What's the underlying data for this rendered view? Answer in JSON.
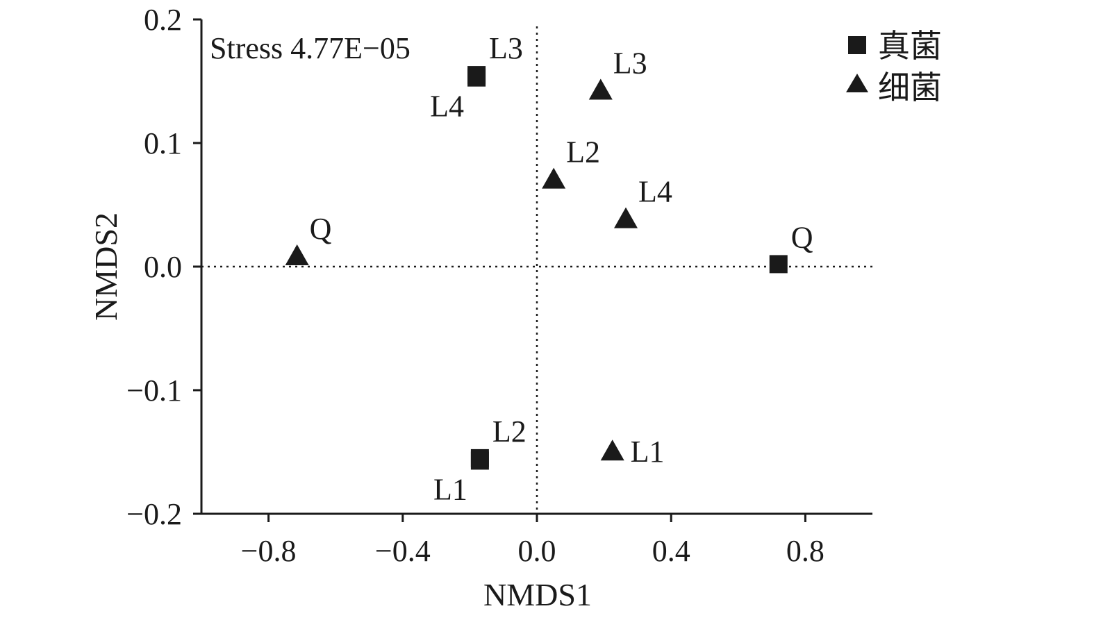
{
  "chart_data": {
    "type": "scatter",
    "xlabel": "NMDS1",
    "ylabel": "NMDS2",
    "xlim": [
      -1.0,
      1.0
    ],
    "ylim": [
      -0.2,
      0.2
    ],
    "xticks": [
      "−0.8",
      "−0.4",
      "0.0",
      "0.4",
      "0.8"
    ],
    "xtick_values": [
      -0.8,
      -0.4,
      0.0,
      0.4,
      0.8
    ],
    "yticks": [
      "0.2",
      "0.1",
      "0.0",
      "−0.1",
      "−0.2"
    ],
    "ytick_values": [
      0.2,
      0.1,
      0.0,
      -0.1,
      -0.2
    ],
    "reference_lines": {
      "x": 0.0,
      "y": 0.0,
      "style": "dotted"
    },
    "annotation": "Stress 4.77E−05",
    "legend_position": "top-right",
    "series": [
      {
        "name": "真菌",
        "marker": "square",
        "color": "#1a1a1a",
        "points": [
          {
            "label": "L3",
            "x": -0.18,
            "y": 0.155,
            "label_side": "above-right"
          },
          {
            "label": "L4",
            "x": -0.18,
            "y": 0.153,
            "label_side": "below-left"
          },
          {
            "label": "L2",
            "x": -0.17,
            "y": -0.155,
            "label_side": "above-right"
          },
          {
            "label": "L1",
            "x": -0.17,
            "y": -0.157,
            "label_side": "below-left"
          },
          {
            "label": "Q",
            "x": 0.72,
            "y": 0.002,
            "label_side": "above-right"
          }
        ]
      },
      {
        "name": "细菌",
        "marker": "triangle",
        "color": "#1a1a1a",
        "points": [
          {
            "label": "L3",
            "x": 0.19,
            "y": 0.143,
            "label_side": "above-right"
          },
          {
            "label": "L2",
            "x": 0.05,
            "y": 0.071,
            "label_side": "above-right"
          },
          {
            "label": "L4",
            "x": 0.265,
            "y": 0.039,
            "label_side": "above-right"
          },
          {
            "label": "Q",
            "x": -0.715,
            "y": 0.009,
            "label_side": "above-right"
          },
          {
            "label": "L1",
            "x": 0.225,
            "y": -0.149,
            "label_side": "right"
          }
        ]
      }
    ]
  }
}
